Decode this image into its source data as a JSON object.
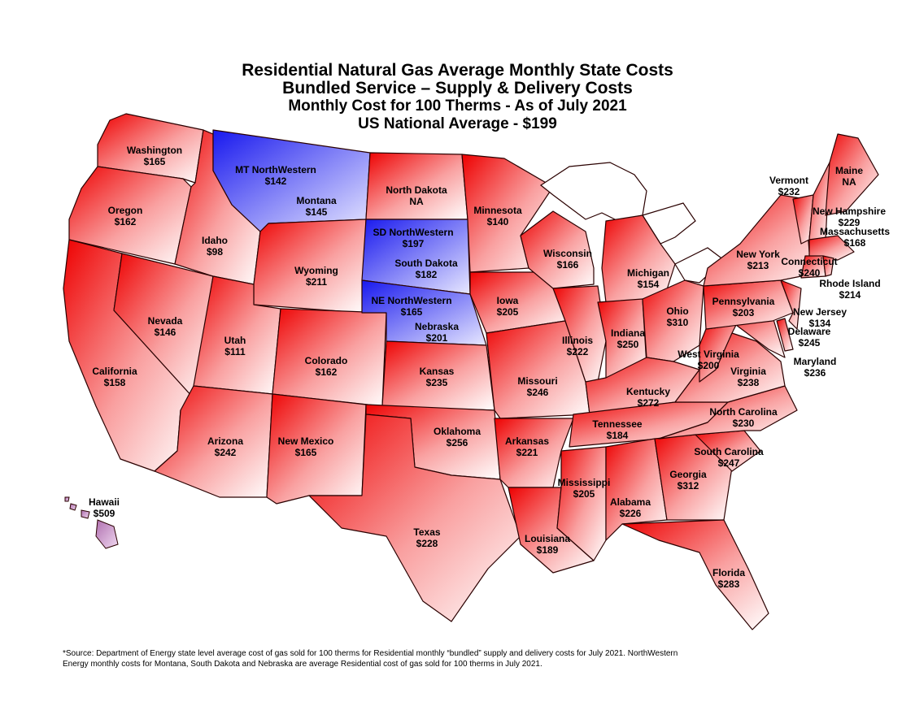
{
  "title": {
    "line1": "Residential Natural Gas Average Monthly State Costs",
    "line2": "Bundled Service – Supply & Delivery Costs",
    "line3": "Monthly Cost for 100 Therms - As of July 2021",
    "line4": "US National Average - $199"
  },
  "colors": {
    "high": "#ee0000",
    "low": "#ffffff",
    "northwestern": "#2020ee",
    "hawaii": "#d8b0d8"
  },
  "states": {
    "washington": {
      "name": "Washington",
      "value": "$165"
    },
    "oregon": {
      "name": "Oregon",
      "value": "$162"
    },
    "california": {
      "name": "California",
      "value": "$158"
    },
    "nevada": {
      "name": "Nevada",
      "value": "$146"
    },
    "idaho": {
      "name": "Idaho",
      "value": "$98"
    },
    "montana_nw": {
      "name": "MT NorthWestern",
      "value": "$142"
    },
    "montana": {
      "name": "Montana",
      "value": "$145"
    },
    "wyoming": {
      "name": "Wyoming",
      "value": "$211"
    },
    "utah": {
      "name": "Utah",
      "value": "$111"
    },
    "arizona": {
      "name": "Arizona",
      "value": "$242"
    },
    "colorado": {
      "name": "Colorado",
      "value": "$162"
    },
    "new_mexico": {
      "name": "New Mexico",
      "value": "$165"
    },
    "north_dakota": {
      "name": "North Dakota",
      "value": "NA"
    },
    "south_dakota_nw": {
      "name": "SD NorthWestern",
      "value": "$197"
    },
    "south_dakota": {
      "name": "South Dakota",
      "value": "$182"
    },
    "nebraska_nw": {
      "name": "NE NorthWestern",
      "value": "$165"
    },
    "nebraska": {
      "name": "Nebraska",
      "value": "$201"
    },
    "kansas": {
      "name": "Kansas",
      "value": "$235"
    },
    "oklahoma": {
      "name": "Oklahoma",
      "value": "$256"
    },
    "texas": {
      "name": "Texas",
      "value": "$228"
    },
    "minnesota": {
      "name": "Minnesota",
      "value": "$140"
    },
    "iowa": {
      "name": "Iowa",
      "value": "$205"
    },
    "missouri": {
      "name": "Missouri",
      "value": "$246"
    },
    "arkansas": {
      "name": "Arkansas",
      "value": "$221"
    },
    "louisiana": {
      "name": "Louisiana",
      "value": "$189"
    },
    "wisconsin": {
      "name": "Wisconsin",
      "value": "$166"
    },
    "illinois": {
      "name": "Illinois",
      "value": "$222"
    },
    "mississippi": {
      "name": "Mississippi",
      "value": "$205"
    },
    "michigan": {
      "name": "Michigan",
      "value": "$154"
    },
    "indiana": {
      "name": "Indiana",
      "value": "$250"
    },
    "kentucky": {
      "name": "Kentucky",
      "value": "$272"
    },
    "tennessee": {
      "name": "Tennessee",
      "value": "$184"
    },
    "alabama": {
      "name": "Alabama",
      "value": "$226"
    },
    "georgia": {
      "name": "Georgia",
      "value": "$312"
    },
    "florida": {
      "name": "Florida",
      "value": "$283"
    },
    "ohio": {
      "name": "Ohio",
      "value": "$310"
    },
    "west_virginia": {
      "name": "West Virginia",
      "value": "$200"
    },
    "virginia": {
      "name": "Virginia",
      "value": "$238"
    },
    "north_carolina": {
      "name": "North Carolina",
      "value": "$230"
    },
    "south_carolina": {
      "name": "South Carolina",
      "value": "$247"
    },
    "pennsylvania": {
      "name": "Pennsylvania",
      "value": "$203"
    },
    "new_york": {
      "name": "New York",
      "value": "$213"
    },
    "vermont": {
      "name": "Vermont",
      "value": "$232"
    },
    "maine": {
      "name": "Maine",
      "value": "NA"
    },
    "new_hampshire": {
      "name": "New Hampshire",
      "value": "$229"
    },
    "massachusetts": {
      "name": "Massachusetts",
      "value": "$168"
    },
    "connecticut": {
      "name": "Connecticut",
      "value": "$240"
    },
    "rhode_island": {
      "name": "Rhode Island",
      "value": "$214"
    },
    "new_jersey": {
      "name": "New Jersey",
      "value": "$134"
    },
    "delaware": {
      "name": "Delaware",
      "value": "$245"
    },
    "maryland": {
      "name": "Maryland",
      "value": "$236"
    },
    "hawaii": {
      "name": "Hawaii",
      "value": "$509"
    }
  },
  "footnote": {
    "line1": "*Source:  Department of Energy state level average cost of gas sold for 100 therms for Residential monthly “bundled” supply and delivery costs for July 2021. NorthWestern",
    "line2": "Energy monthly costs for Montana, South Dakota and Nebraska are average Residential cost of gas sold for 100 therms in July 2021."
  }
}
